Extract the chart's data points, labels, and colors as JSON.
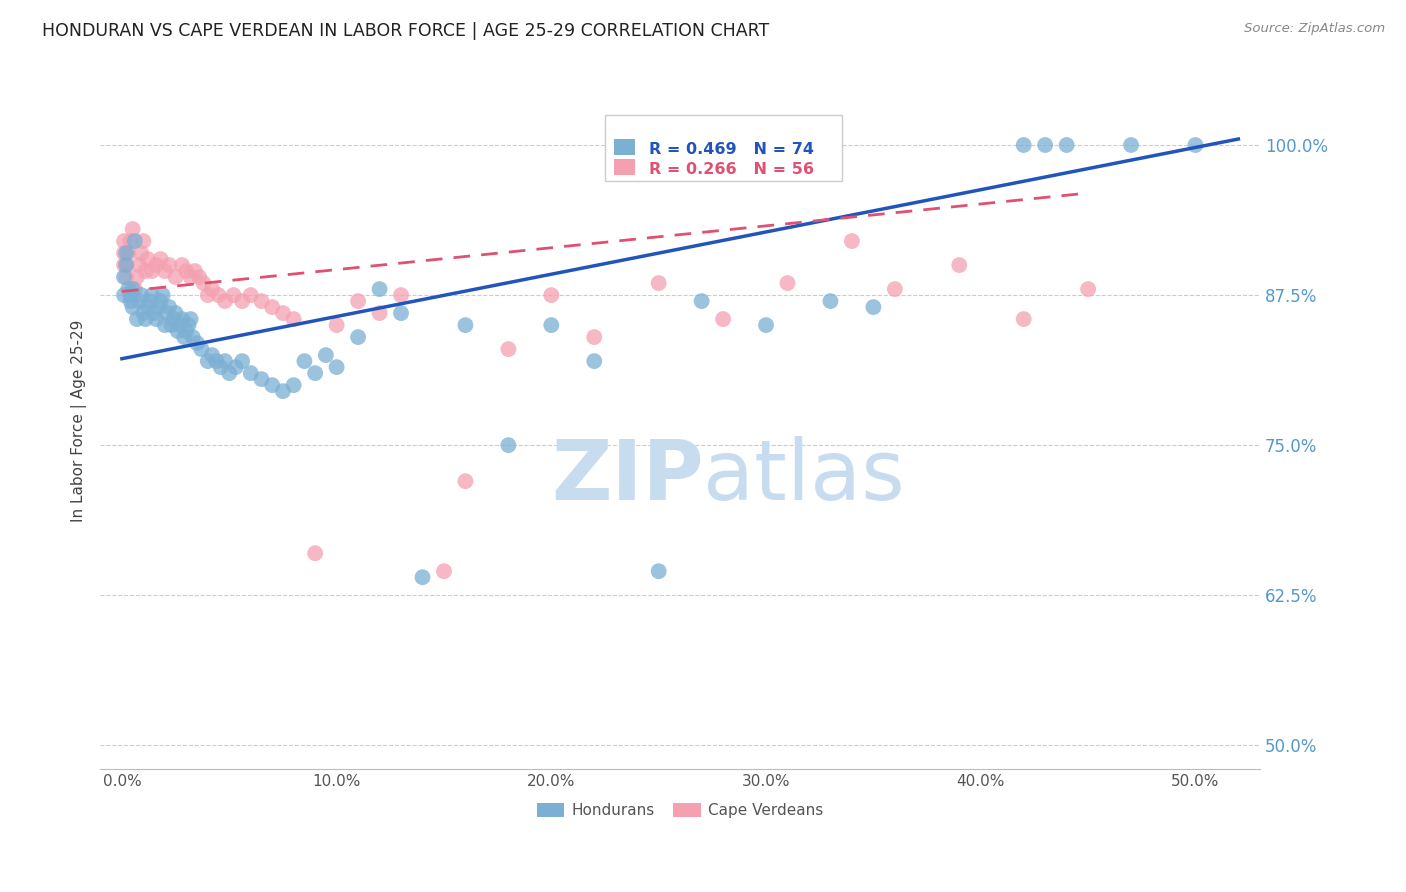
{
  "title": "HONDURAN VS CAPE VERDEAN IN LABOR FORCE | AGE 25-29 CORRELATION CHART",
  "source": "Source: ZipAtlas.com",
  "ylabel": "In Labor Force | Age 25-29",
  "x_ticks": [
    0.0,
    0.1,
    0.2,
    0.3,
    0.4,
    0.5
  ],
  "x_tick_labels": [
    "0.0%",
    "10.0%",
    "20.0%",
    "30.0%",
    "40.0%",
    "50.0%"
  ],
  "y_ticks": [
    0.5,
    0.625,
    0.75,
    0.875,
    1.0
  ],
  "y_tick_labels_right": [
    "50.0%",
    "62.5%",
    "75.0%",
    "87.5%",
    "100.0%"
  ],
  "xlim": [
    -0.01,
    0.53
  ],
  "ylim": [
    0.48,
    1.06
  ],
  "blue_color": "#7BAFD4",
  "pink_color": "#F4A0B0",
  "blue_line_color": "#2255BB",
  "pink_line_color": "#E05070",
  "background_color": "#FFFFFF",
  "grid_color": "#CCCCCC",
  "title_color": "#222222",
  "source_color": "#888888",
  "axis_label_color": "#444444",
  "tick_color_right": "#5599CC",
  "legend_text_blue": "R = 0.469   N = 74",
  "legend_text_pink": "R = 0.266   N = 56",
  "legend_label_blue": "Hondurans",
  "legend_label_pink": "Cape Verdeans",
  "blue_scatter_x": [
    0.001,
    0.001,
    0.002,
    0.002,
    0.003,
    0.004,
    0.004,
    0.005,
    0.005,
    0.006,
    0.007,
    0.008,
    0.009,
    0.01,
    0.011,
    0.012,
    0.013,
    0.014,
    0.015,
    0.016,
    0.017,
    0.018,
    0.019,
    0.02,
    0.021,
    0.022,
    0.023,
    0.024,
    0.025,
    0.026,
    0.027,
    0.028,
    0.029,
    0.03,
    0.031,
    0.032,
    0.033,
    0.035,
    0.037,
    0.04,
    0.042,
    0.044,
    0.046,
    0.048,
    0.05,
    0.053,
    0.056,
    0.06,
    0.065,
    0.07,
    0.075,
    0.08,
    0.085,
    0.09,
    0.095,
    0.1,
    0.11,
    0.12,
    0.13,
    0.14,
    0.16,
    0.18,
    0.2,
    0.22,
    0.25,
    0.27,
    0.3,
    0.33,
    0.35,
    0.42,
    0.43,
    0.44,
    0.47,
    0.5
  ],
  "blue_scatter_y": [
    0.875,
    0.89,
    0.9,
    0.91,
    0.88,
    0.87,
    0.875,
    0.865,
    0.88,
    0.92,
    0.855,
    0.87,
    0.875,
    0.86,
    0.855,
    0.865,
    0.87,
    0.875,
    0.86,
    0.855,
    0.865,
    0.87,
    0.875,
    0.85,
    0.86,
    0.865,
    0.85,
    0.855,
    0.86,
    0.845,
    0.85,
    0.855,
    0.84,
    0.845,
    0.85,
    0.855,
    0.84,
    0.835,
    0.83,
    0.82,
    0.825,
    0.82,
    0.815,
    0.82,
    0.81,
    0.815,
    0.82,
    0.81,
    0.805,
    0.8,
    0.795,
    0.8,
    0.82,
    0.81,
    0.825,
    0.815,
    0.84,
    0.88,
    0.86,
    0.64,
    0.85,
    0.75,
    0.85,
    0.82,
    0.645,
    0.87,
    0.85,
    0.87,
    0.865,
    1.0,
    1.0,
    1.0,
    1.0,
    1.0
  ],
  "pink_scatter_x": [
    0.001,
    0.001,
    0.001,
    0.002,
    0.002,
    0.003,
    0.004,
    0.005,
    0.006,
    0.007,
    0.008,
    0.009,
    0.01,
    0.011,
    0.012,
    0.014,
    0.016,
    0.018,
    0.02,
    0.022,
    0.025,
    0.028,
    0.03,
    0.032,
    0.034,
    0.036,
    0.038,
    0.04,
    0.042,
    0.045,
    0.048,
    0.052,
    0.056,
    0.06,
    0.065,
    0.07,
    0.075,
    0.08,
    0.09,
    0.1,
    0.11,
    0.12,
    0.13,
    0.15,
    0.16,
    0.18,
    0.2,
    0.22,
    0.25,
    0.28,
    0.31,
    0.34,
    0.36,
    0.39,
    0.42,
    0.45
  ],
  "pink_scatter_y": [
    0.9,
    0.91,
    0.92,
    0.89,
    0.9,
    0.91,
    0.92,
    0.93,
    0.88,
    0.89,
    0.9,
    0.91,
    0.92,
    0.895,
    0.905,
    0.895,
    0.9,
    0.905,
    0.895,
    0.9,
    0.89,
    0.9,
    0.895,
    0.89,
    0.895,
    0.89,
    0.885,
    0.875,
    0.88,
    0.875,
    0.87,
    0.875,
    0.87,
    0.875,
    0.87,
    0.865,
    0.86,
    0.855,
    0.66,
    0.85,
    0.87,
    0.86,
    0.875,
    0.645,
    0.72,
    0.83,
    0.875,
    0.84,
    0.885,
    0.855,
    0.885,
    0.92,
    0.88,
    0.9,
    0.855,
    0.88
  ],
  "blue_line_x0": 0.0,
  "blue_line_x1": 0.52,
  "blue_line_y0": 0.822,
  "blue_line_y1": 1.005,
  "pink_line_x0": 0.0,
  "pink_line_x1": 0.45,
  "pink_line_y0": 0.878,
  "pink_line_y1": 0.96,
  "watermark_zip": "ZIP",
  "watermark_atlas": "atlas",
  "watermark_color": "#C8DCF0"
}
